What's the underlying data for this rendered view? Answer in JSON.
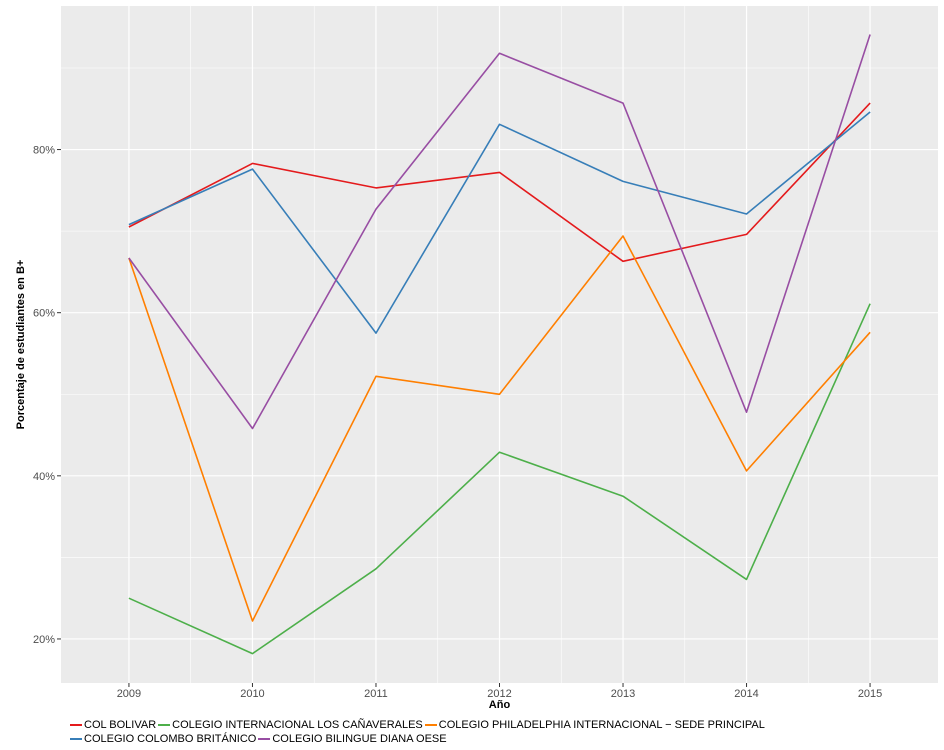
{
  "chart_data": {
    "type": "line",
    "title": "",
    "xlabel": "Año",
    "ylabel": "Porcentaje de estudiantes en B+",
    "x": [
      2009,
      2010,
      2011,
      2012,
      2013,
      2014,
      2015
    ],
    "x_tick_labels": [
      "2009",
      "2010",
      "2011",
      "2012",
      "2013",
      "2014",
      "2015"
    ],
    "xlim": [
      2008.45,
      2015.55
    ],
    "ylim": [
      14.6,
      97.6
    ],
    "y_ticks": [
      20,
      40,
      60,
      80
    ],
    "y_tick_labels": [
      "20%",
      "40%",
      "60%",
      "80%"
    ],
    "grid": true,
    "legend_position": "bottom",
    "series": [
      {
        "name": "COL BOLIVAR",
        "color": "#E41A1C",
        "values": [
          70.5,
          78.3,
          75.3,
          77.2,
          66.3,
          69.6,
          85.7
        ]
      },
      {
        "name": "COLEGIO INTERNACIONAL LOS CAÑAVERALES",
        "color": "#4DAF4A",
        "values": [
          25.0,
          18.2,
          28.6,
          42.9,
          37.5,
          27.3,
          61.1
        ]
      },
      {
        "name": "COLEGIO PHILADELPHIA INTERNACIONAL − SEDE PRINCIPAL",
        "color": "#FF7F00",
        "values": [
          66.7,
          22.2,
          52.2,
          50.0,
          69.4,
          40.6,
          57.6
        ]
      },
      {
        "name": "COLEGIO COLOMBO BRITÁNICO",
        "color": "#377EB8",
        "values": [
          70.8,
          77.6,
          57.5,
          83.1,
          76.1,
          72.1,
          84.6
        ]
      },
      {
        "name": "COLEGIO BILINGUE DIANA OESE",
        "color": "#984EA3",
        "values": [
          66.7,
          45.8,
          72.7,
          91.8,
          85.7,
          47.8,
          94.1
        ]
      }
    ]
  }
}
